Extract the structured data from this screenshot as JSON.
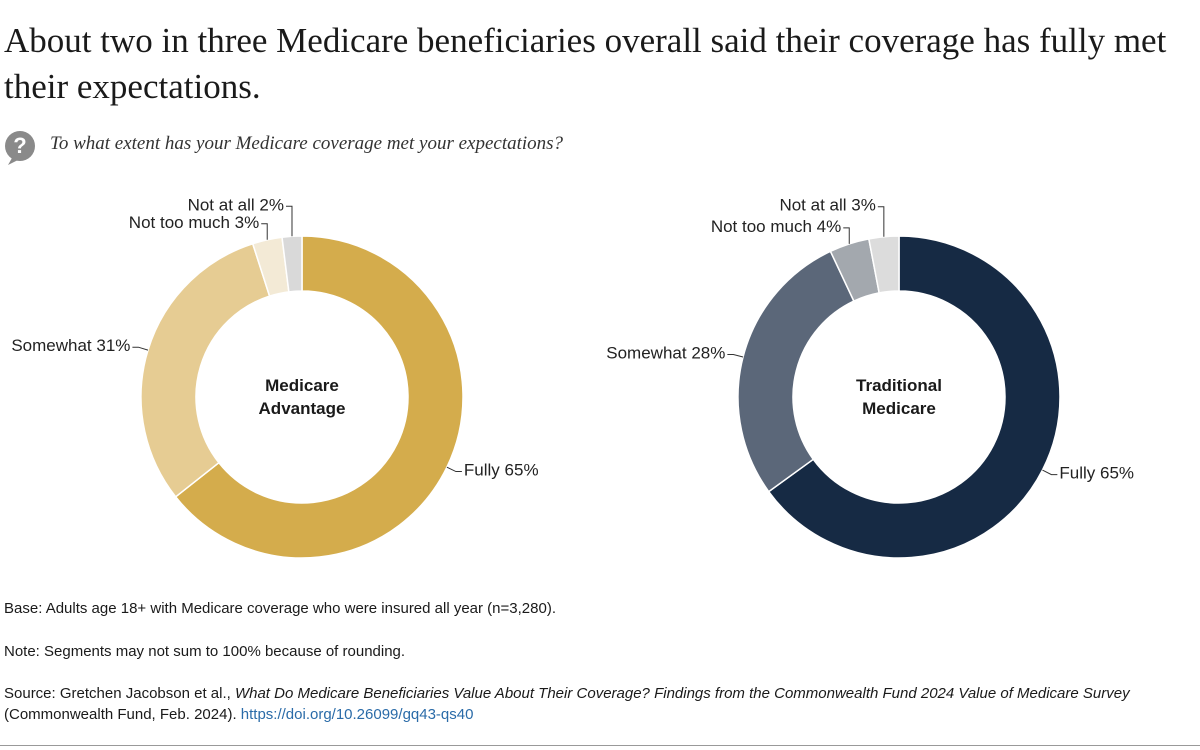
{
  "title": "About two in three Medicare beneficiaries overall said their coverage has fully met their expectations.",
  "question": "To what extent has your Medicare coverage met your expectations?",
  "chart_data": [
    {
      "type": "donut",
      "title": "Medicare Advantage",
      "categories": [
        "Fully",
        "Somewhat",
        "Not too much",
        "Not at all"
      ],
      "values": [
        65,
        31,
        3,
        2
      ],
      "value_labels": [
        "65%",
        "31%",
        "3%",
        "2%"
      ],
      "colors": [
        "#d4ac4c",
        "#e6cc93",
        "#f3ead6",
        "#d9d9d9"
      ]
    },
    {
      "type": "donut",
      "title": "Traditional Medicare",
      "categories": [
        "Fully",
        "Somewhat",
        "Not too much",
        "Not at all"
      ],
      "values": [
        65,
        28,
        4,
        3
      ],
      "value_labels": [
        "65%",
        "28%",
        "4%",
        "3%"
      ],
      "colors": [
        "#162a44",
        "#5b6779",
        "#a3a8ae",
        "#dcdcdc"
      ]
    }
  ],
  "notes": {
    "base": "Base: Adults age 18+ with Medicare coverage who were insured all year (n=3,280).",
    "note": "Note: Segments may not sum to 100% because of rounding.",
    "source": {
      "prefix": "Source: Gretchen Jacobson et al., ",
      "italic": "What Do Medicare Beneficiaries Value About Their Coverage? Findings from the Commonwealth Fund 2024 Value of Medicare Survey",
      "suffix": " (Commonwealth Fund, Feb. 2024). ",
      "link": "https://doi.org/10.26099/gq43-qs40"
    }
  }
}
